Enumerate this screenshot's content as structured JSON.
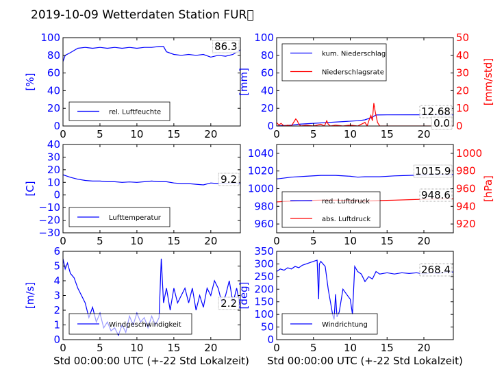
{
  "figure": {
    "title": "2019-10-09 Wetterdaten Station FUR\u0000",
    "xlabel_left": "Std 00:00:00 UTC (+-22 Std Lokalzeit)",
    "xlabel_right": "Std 00:00:00 UTC (+-22 Std Lokalzeit)",
    "colors": {
      "primary": "#0000ff",
      "secondary": "#ff0000",
      "frame": "#000000"
    }
  },
  "chart_data": [
    {
      "id": "humidity",
      "type": "line",
      "ylabel": "[%]",
      "xlim": [
        0,
        24
      ],
      "ylim": [
        0,
        100
      ],
      "xticks": [
        0,
        5,
        10,
        15,
        20
      ],
      "yticks": [
        0,
        20,
        40,
        60,
        80,
        100
      ],
      "legend": "bottom-left",
      "current_value": "86.3",
      "series": [
        {
          "name": "rel. Luftfeuchte",
          "color": "#0000ff",
          "x": [
            0,
            0.3,
            1,
            2,
            3,
            4,
            5,
            6,
            7,
            8,
            9,
            10,
            11,
            12,
            13,
            13.6,
            14,
            15,
            16,
            17,
            18,
            19,
            20,
            21,
            22,
            23,
            24
          ],
          "y": [
            73,
            80,
            83,
            88,
            89,
            88,
            89,
            88,
            89,
            88,
            89,
            88,
            89,
            89,
            90,
            90,
            84,
            81,
            80,
            81,
            80,
            81,
            78,
            80,
            79,
            81,
            86.3
          ]
        }
      ]
    },
    {
      "id": "precipitation",
      "type": "line",
      "ylabel": "[mm]",
      "ylabel2": "[mm/std]",
      "xlim": [
        0,
        24
      ],
      "ylim": [
        0,
        100
      ],
      "ylim2": [
        0,
        50
      ],
      "xticks": [
        0,
        5,
        10,
        15,
        20
      ],
      "yticks": [
        0,
        20,
        40,
        60,
        80,
        100
      ],
      "yticks2": [
        0,
        10,
        20,
        30,
        40,
        50
      ],
      "legend": "top-left",
      "current_value": "12.68",
      "current_value2": "0.0",
      "series": [
        {
          "name": "kum. Niederschlag",
          "color": "#0000ff",
          "axis": "left",
          "x": [
            0,
            2,
            3,
            5,
            7,
            9,
            11,
            12,
            13,
            13.5,
            15,
            20,
            24
          ],
          "y": [
            0,
            1,
            2,
            3,
            4,
            5,
            6,
            7,
            10,
            12.5,
            12.6,
            12.68,
            12.68
          ]
        }
      ],
      "series2": [
        {
          "name": "Niederschlagsrate",
          "color": "#ff0000",
          "axis": "right",
          "x": [
            0,
            0.3,
            0.6,
            1,
            1.5,
            2,
            2.6,
            2.8,
            3,
            3.3,
            4,
            5,
            6,
            6.5,
            6.8,
            7,
            7.3,
            8,
            9,
            10,
            11,
            11.5,
            12,
            12.3,
            12.6,
            12.8,
            13,
            13.1,
            13.2,
            13.35,
            13.5,
            13.7,
            14,
            15,
            16,
            18,
            20,
            24
          ],
          "y": [
            2,
            0.5,
            1.5,
            0,
            0.5,
            0,
            4,
            3,
            1,
            0,
            0.5,
            0,
            1,
            0,
            3,
            1,
            0,
            0.5,
            0,
            0.5,
            0,
            1,
            2,
            0,
            4,
            6,
            3,
            8,
            13,
            9,
            6,
            2,
            0,
            0,
            0,
            0,
            0,
            0
          ]
        }
      ]
    },
    {
      "id": "temperature",
      "type": "line",
      "ylabel": "[C]",
      "xlim": [
        0,
        24
      ],
      "ylim": [
        -30,
        40
      ],
      "xticks": [
        0,
        5,
        10,
        15,
        20
      ],
      "yticks": [
        -30,
        -20,
        -10,
        0,
        10,
        20,
        30,
        40
      ],
      "legend": "bottom-left",
      "current_value": "9.2",
      "series": [
        {
          "name": "Lufttemperatur",
          "color": "#0000ff",
          "x": [
            0,
            1,
            2,
            3,
            4,
            5,
            6,
            7,
            8,
            9,
            10,
            11,
            12,
            13,
            14,
            15,
            16,
            17,
            18,
            19,
            20,
            21,
            22,
            23,
            24
          ],
          "y": [
            16,
            14,
            12.5,
            11.5,
            11,
            11,
            10.5,
            10.5,
            10,
            10.3,
            10,
            10.5,
            11,
            10.5,
            10.5,
            9.5,
            9,
            9,
            8.5,
            8,
            9.5,
            9,
            9.2,
            9.2,
            9.2
          ]
        }
      ]
    },
    {
      "id": "pressure",
      "type": "line",
      "ylabel2": "[hPa]",
      "xlim": [
        0,
        24
      ],
      "ylim": [
        950,
        1050
      ],
      "ylim2": [
        910,
        1010
      ],
      "xticks": [
        0,
        5,
        10,
        15,
        20
      ],
      "yticks": [
        960,
        980,
        1000,
        1020,
        1040
      ],
      "yticks2": [
        920,
        940,
        960,
        980,
        1000
      ],
      "legend": "bottom-left",
      "current_value": "1015.9",
      "current_value2": "948.6",
      "series": [
        {
          "name": "red. Luftdruck",
          "color": "#0000ff",
          "axis": "left",
          "x": [
            0,
            2,
            4,
            6,
            8,
            10,
            11,
            12,
            14,
            16,
            18,
            20,
            22,
            24
          ],
          "y": [
            1011,
            1013,
            1014,
            1015,
            1015,
            1014,
            1013,
            1013.5,
            1013.5,
            1014.5,
            1015,
            1015.5,
            1015.8,
            1015.9
          ]
        }
      ],
      "series2": [
        {
          "name": "abs. Luftdruck",
          "color": "#ff0000",
          "axis": "right",
          "x": [
            0,
            2,
            4,
            6,
            8,
            10,
            11,
            12,
            14,
            16,
            18,
            20,
            22,
            24
          ],
          "y": [
            945,
            946,
            946.5,
            947,
            947,
            946.5,
            946,
            946,
            946.5,
            947,
            947.5,
            948,
            948.3,
            948.6
          ]
        }
      ]
    },
    {
      "id": "windspeed",
      "type": "line",
      "ylabel": "[m/s]",
      "xlim": [
        0,
        24
      ],
      "ylim": [
        0,
        6
      ],
      "xticks": [
        0,
        5,
        10,
        15,
        20
      ],
      "yticks": [
        0,
        1,
        2,
        3,
        4,
        5,
        6
      ],
      "legend": "bottom-left",
      "current_value": "2.2",
      "series": [
        {
          "name": "Windgeschwindigkeit",
          "color": "#0000ff",
          "x": [
            0,
            0.3,
            0.6,
            1,
            1.5,
            2,
            2.5,
            3,
            3.5,
            4,
            4.5,
            5,
            5.5,
            6,
            6.5,
            7,
            7.5,
            8,
            8.5,
            9,
            9.5,
            10,
            10.5,
            11,
            11.5,
            12,
            12.5,
            13,
            13.3,
            13.6,
            14,
            14.5,
            15,
            15.5,
            16,
            16.5,
            17,
            17.5,
            18,
            18.5,
            19,
            19.5,
            20,
            20.5,
            21,
            21.5,
            22,
            22.5,
            23,
            23.5,
            24
          ],
          "y": [
            5.5,
            4.8,
            5.2,
            4.5,
            4.2,
            3.5,
            3.0,
            2.5,
            1.5,
            2.2,
            1.2,
            1.8,
            0.8,
            1.2,
            0.6,
            0.8,
            0.3,
            1.0,
            0.5,
            1.6,
            1.0,
            1.8,
            1.2,
            1.5,
            0.8,
            1.6,
            1.0,
            1.5,
            5.5,
            2.5,
            3.5,
            2.0,
            3.5,
            2.5,
            3.0,
            3.5,
            2.5,
            3.5,
            2.0,
            3.0,
            2.2,
            3.5,
            3.0,
            4.0,
            3.5,
            2.5,
            3.0,
            4.0,
            2.5,
            3.5,
            2.2
          ]
        }
      ]
    },
    {
      "id": "winddirection",
      "type": "line",
      "ylabel": "[deg]",
      "xlim": [
        0,
        24
      ],
      "ylim": [
        0,
        350
      ],
      "xticks": [
        0,
        5,
        10,
        15,
        20
      ],
      "yticks": [
        0,
        50,
        100,
        150,
        200,
        250,
        300,
        350
      ],
      "legend": "bottom-left",
      "current_value": "268.4",
      "series": [
        {
          "name": "Windrichtung",
          "color": "#0000ff",
          "x": [
            0,
            0.5,
            1,
            1.5,
            2,
            2.5,
            3,
            3.5,
            4,
            4.5,
            5,
            5.5,
            5.7,
            5.8,
            6,
            6.3,
            6.6,
            7,
            7.3,
            7.6,
            7.8,
            8,
            8.2,
            8.5,
            9,
            9.5,
            10,
            10.3,
            10.6,
            11,
            11.5,
            12,
            12.5,
            13,
            13.5,
            14,
            15,
            16,
            17,
            18,
            19,
            20,
            21,
            22,
            23,
            24
          ],
          "y": [
            270,
            280,
            275,
            285,
            280,
            290,
            285,
            295,
            300,
            305,
            310,
            315,
            160,
            300,
            310,
            300,
            290,
            200,
            150,
            100,
            80,
            180,
            90,
            110,
            200,
            180,
            160,
            100,
            290,
            270,
            260,
            230,
            250,
            240,
            270,
            260,
            265,
            260,
            265,
            262,
            265,
            260,
            265,
            262,
            268,
            268.4
          ]
        }
      ]
    }
  ]
}
